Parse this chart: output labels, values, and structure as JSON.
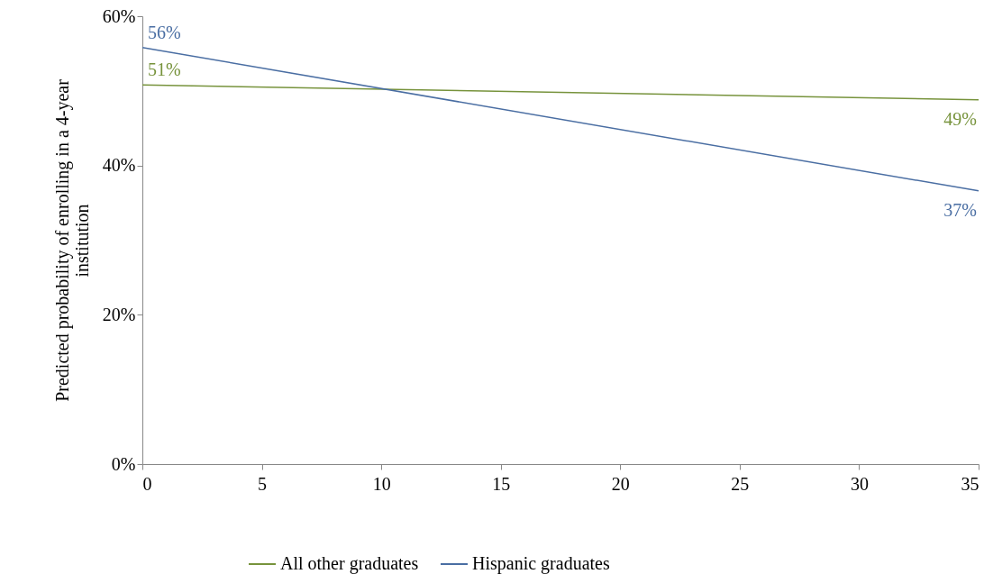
{
  "chart_data": {
    "type": "line",
    "ylabel": "Predicted probability of enrolling in a 4-year institution",
    "x": [
      0,
      35
    ],
    "xlim": [
      0,
      35
    ],
    "xticks": [
      0,
      5,
      10,
      15,
      20,
      25,
      30,
      35
    ],
    "ylim": [
      0,
      60
    ],
    "yticks": [
      {
        "value": 0,
        "label": "0%"
      },
      {
        "value": 20,
        "label": "20%"
      },
      {
        "value": 40,
        "label": "40%"
      },
      {
        "value": 60,
        "label": "60%"
      }
    ],
    "grid": false,
    "legend": "bottom",
    "marker": "none",
    "line_style": "solid",
    "series": [
      {
        "name": "All other graduates",
        "color": "#77933c",
        "values": [
          50.8,
          48.8
        ],
        "value_labels": [
          "51%",
          "49%"
        ]
      },
      {
        "name": "Hispanic graduates",
        "color": "#4a6ea3",
        "values": [
          55.8,
          36.6
        ],
        "value_labels": [
          "56%",
          "37%"
        ]
      }
    ]
  }
}
